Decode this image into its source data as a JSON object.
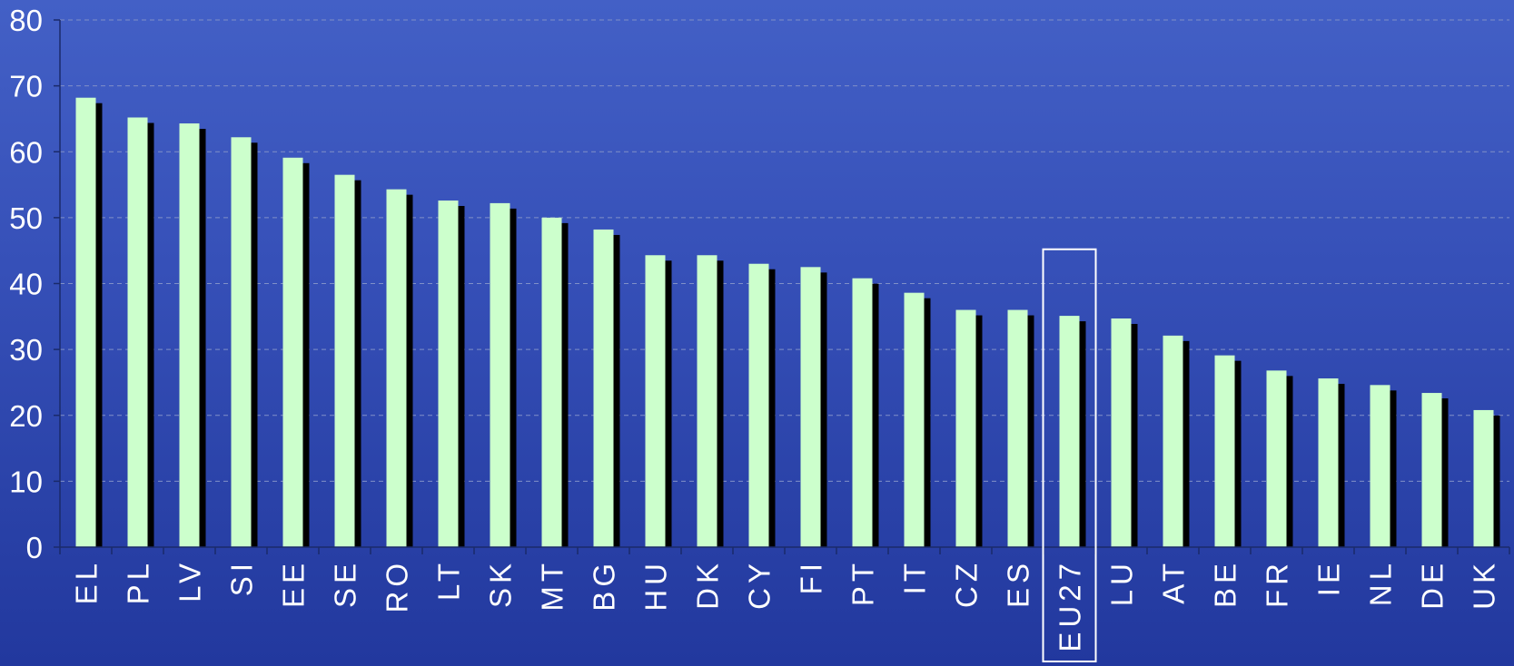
{
  "colors": {
    "bar": "#ccffcc",
    "shadow": "#000000",
    "axis": "#1a2a6a",
    "grid": "#8090c8",
    "text": "#ffffff",
    "highlight_box": "#ffffff"
  },
  "chart_data": {
    "type": "bar",
    "title": "",
    "xlabel": "",
    "ylabel": "",
    "ylim": [
      0,
      80
    ],
    "yticks": [
      0,
      10,
      20,
      30,
      40,
      50,
      60,
      70,
      80
    ],
    "grid": true,
    "legend": "none",
    "highlighted_category": "EU27",
    "categories": [
      "EL",
      "PL",
      "LV",
      "SI",
      "EE",
      "SE",
      "RO",
      "LT",
      "SK",
      "MT",
      "BG",
      "HU",
      "DK",
      "CY",
      "FI",
      "PT",
      "IT",
      "CZ",
      "ES",
      "EU27",
      "LU",
      "AT",
      "BE",
      "FR",
      "IE",
      "NL",
      "DE",
      "UK"
    ],
    "values": [
      68.2,
      65.2,
      64.3,
      62.2,
      59.1,
      56.5,
      54.3,
      52.6,
      52.2,
      50.0,
      48.2,
      44.3,
      44.3,
      43.0,
      42.5,
      40.8,
      38.6,
      36.0,
      36.0,
      35.1,
      34.7,
      32.1,
      29.1,
      26.8,
      25.6,
      24.6,
      23.4,
      20.8
    ]
  }
}
